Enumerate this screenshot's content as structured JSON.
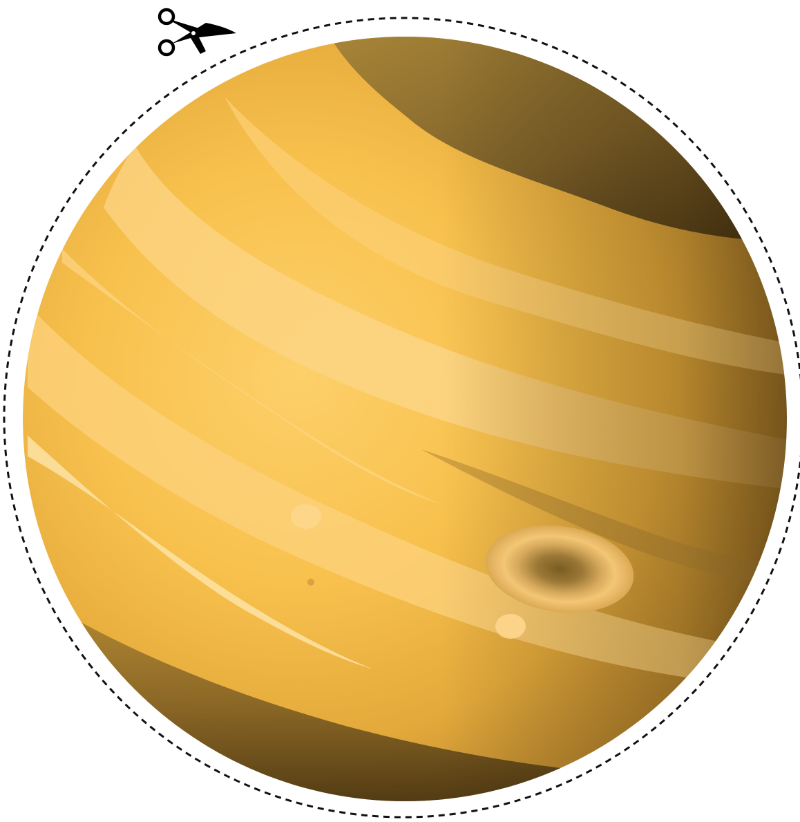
{
  "page": {
    "background": "#ffffff"
  },
  "cutout": {
    "cut_line_style": "dashed",
    "cut_line_color": "#111111",
    "scissors_icon": "scissors-icon",
    "scissors_color": "#000000"
  },
  "planet": {
    "kind": "banded gas giant",
    "base_color": "#f7bd45",
    "light_band_color": "#fdd17a",
    "shadow_color": "#2e200c",
    "spot_color": "#7a5c22",
    "spot_ring_color": "#f5c876"
  }
}
